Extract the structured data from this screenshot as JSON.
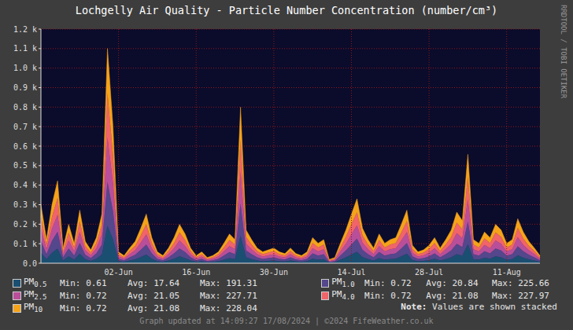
{
  "chart_data": {
    "type": "area",
    "title": "Lochgelly Air Quality - Particle Number Concentration (number/cm³)",
    "stacked": true,
    "grid": true,
    "categories": [
      null,
      null,
      null,
      null,
      null,
      null,
      null,
      null,
      null,
      null,
      null,
      null,
      null,
      null,
      "02-Jun",
      null,
      null,
      null,
      null,
      null,
      null,
      null,
      null,
      null,
      null,
      null,
      null,
      null,
      "16-Jun",
      null,
      null,
      null,
      null,
      null,
      null,
      null,
      null,
      null,
      null,
      null,
      null,
      null,
      "30-Jun",
      null,
      null,
      null,
      null,
      null,
      null,
      null,
      null,
      null,
      null,
      null,
      null,
      null,
      "14-Jul",
      null,
      null,
      null,
      null,
      null,
      null,
      null,
      null,
      null,
      null,
      null,
      null,
      null,
      "28-Jul",
      null,
      null,
      null,
      null,
      null,
      null,
      null,
      null,
      null,
      null,
      null,
      null,
      null,
      "11-Aug",
      null,
      null,
      null,
      null,
      null,
      null
    ],
    "ylim": [
      0,
      1200
    ],
    "yticks": [
      {
        "value": 0,
        "label": "0.0"
      },
      {
        "value": 100,
        "label": "0.1 k"
      },
      {
        "value": 200,
        "label": "0.2 k"
      },
      {
        "value": 300,
        "label": "0.3 k"
      },
      {
        "value": 400,
        "label": "0.4 k"
      },
      {
        "value": 500,
        "label": "0.5 k"
      },
      {
        "value": 600,
        "label": "0.6 k"
      },
      {
        "value": 700,
        "label": "0.7 k"
      },
      {
        "value": 800,
        "label": "0.8 k"
      },
      {
        "value": 900,
        "label": "0.9 k"
      },
      {
        "value": 1000,
        "label": "1.0 k"
      },
      {
        "value": 1100,
        "label": "1.1 k"
      },
      {
        "value": 1200,
        "label": "1.2 k"
      }
    ],
    "stat_labels": [
      "Min:",
      "Avg:",
      "Max:"
    ],
    "series": [
      {
        "name": "PM0.5",
        "color": "#1b4f72",
        "min": 0.61,
        "avg": 17.64,
        "max": 191.31,
        "values": [
          53,
          21,
          53,
          74,
          14,
          35,
          18,
          48,
          20,
          12,
          23,
          44,
          191.31,
          122,
          10,
          7,
          14,
          20,
          31,
          44,
          23,
          10,
          7,
          14,
          23,
          35,
          26,
          14,
          7,
          10,
          5,
          7,
          10,
          18,
          26,
          21,
          140,
          30,
          21,
          14,
          10,
          12,
          14,
          10,
          9,
          14,
          9,
          7,
          10,
          23,
          18,
          21,
          3,
          5,
          18,
          30,
          44,
          58,
          31,
          21,
          14,
          26,
          18,
          21,
          23,
          35,
          48,
          16,
          10,
          12,
          16,
          23,
          14,
          21,
          30,
          46,
          38,
          98,
          21,
          18,
          28,
          23,
          35,
          30,
          18,
          21,
          40,
          28,
          20,
          14,
          7
        ]
      },
      {
        "name": "PM1.0",
        "color": "#54478c",
        "min": 0.72,
        "avg": 20.84,
        "max": 225.66,
        "values": [
          62,
          25,
          62,
          87,
          16,
          41,
          21,
          56,
          23,
          14,
          27,
          52,
          225.66,
          144,
          12,
          8,
          16,
          23,
          37,
          52,
          27,
          12,
          8,
          16,
          27,
          41,
          31,
          16,
          8,
          12,
          6,
          8,
          12,
          21,
          31,
          25,
          165,
          35,
          25,
          16,
          12,
          14,
          16,
          12,
          10,
          16,
          10,
          8,
          12,
          27,
          21,
          25,
          4,
          6,
          21,
          35,
          52,
          68,
          37,
          25,
          16,
          31,
          21,
          25,
          27,
          41,
          56,
          19,
          12,
          14,
          19,
          27,
          16,
          25,
          35,
          54,
          45,
          115,
          25,
          21,
          33,
          27,
          41,
          35,
          21,
          25,
          47,
          33,
          23,
          16,
          8
        ]
      },
      {
        "name": "PM2.5",
        "color": "#b94f9a",
        "min": 0.72,
        "avg": 21.05,
        "max": 227.71,
        "values": [
          62,
          25,
          62,
          87,
          16,
          41,
          21,
          56,
          23,
          14,
          27,
          52,
          227.71,
          144,
          12,
          8,
          16,
          23,
          37,
          52,
          27,
          12,
          8,
          16,
          27,
          41,
          31,
          16,
          8,
          12,
          6,
          8,
          12,
          21,
          31,
          25,
          165,
          35,
          25,
          16,
          12,
          14,
          16,
          12,
          10,
          16,
          10,
          8,
          12,
          27,
          21,
          25,
          4,
          6,
          21,
          35,
          52,
          68,
          37,
          25,
          16,
          31,
          21,
          25,
          27,
          41,
          56,
          19,
          12,
          14,
          19,
          27,
          16,
          25,
          35,
          54,
          45,
          115,
          25,
          21,
          33,
          27,
          41,
          35,
          21,
          25,
          47,
          33,
          23,
          16,
          8
        ]
      },
      {
        "name": "PM4.0",
        "color": "#f0646a",
        "min": 0.72,
        "avg": 21.08,
        "max": 227.97,
        "values": [
          62,
          25,
          62,
          87,
          16,
          41,
          21,
          56,
          23,
          14,
          27,
          52,
          227.97,
          144,
          12,
          8,
          16,
          23,
          37,
          52,
          27,
          12,
          8,
          16,
          27,
          41,
          31,
          16,
          8,
          12,
          6,
          8,
          12,
          21,
          31,
          25,
          165,
          35,
          25,
          16,
          12,
          14,
          16,
          12,
          10,
          16,
          10,
          8,
          12,
          27,
          21,
          25,
          4,
          6,
          21,
          35,
          52,
          68,
          37,
          25,
          16,
          31,
          21,
          25,
          27,
          41,
          56,
          19,
          12,
          14,
          19,
          27,
          16,
          25,
          35,
          54,
          45,
          115,
          25,
          21,
          33,
          27,
          41,
          35,
          21,
          25,
          47,
          33,
          23,
          16,
          8
        ]
      },
      {
        "name": "PM10",
        "color": "#f5a31a",
        "min": 0.72,
        "avg": 21.08,
        "max": 228.04,
        "values": [
          62,
          25,
          62,
          87,
          16,
          41,
          21,
          56,
          23,
          14,
          27,
          52,
          228.04,
          144,
          12,
          8,
          16,
          23,
          37,
          52,
          27,
          12,
          8,
          16,
          27,
          41,
          31,
          16,
          8,
          12,
          6,
          8,
          12,
          21,
          31,
          25,
          165,
          35,
          25,
          16,
          12,
          14,
          16,
          12,
          10,
          16,
          10,
          8,
          12,
          27,
          21,
          25,
          4,
          6,
          21,
          35,
          52,
          68,
          37,
          25,
          16,
          31,
          21,
          25,
          27,
          41,
          56,
          19,
          12,
          14,
          19,
          27,
          16,
          25,
          35,
          54,
          45,
          115,
          25,
          21,
          33,
          27,
          41,
          35,
          21,
          25,
          47,
          33,
          23,
          16,
          8
        ]
      }
    ],
    "note_label": "Note:",
    "note": "Values are shown stacked",
    "footer": "Graph updated at 14:09:27 17/08/2024 | ©2024 FifeWeather.co.uk",
    "watermark": "RRDTOOL / TOBI OETIKER"
  }
}
